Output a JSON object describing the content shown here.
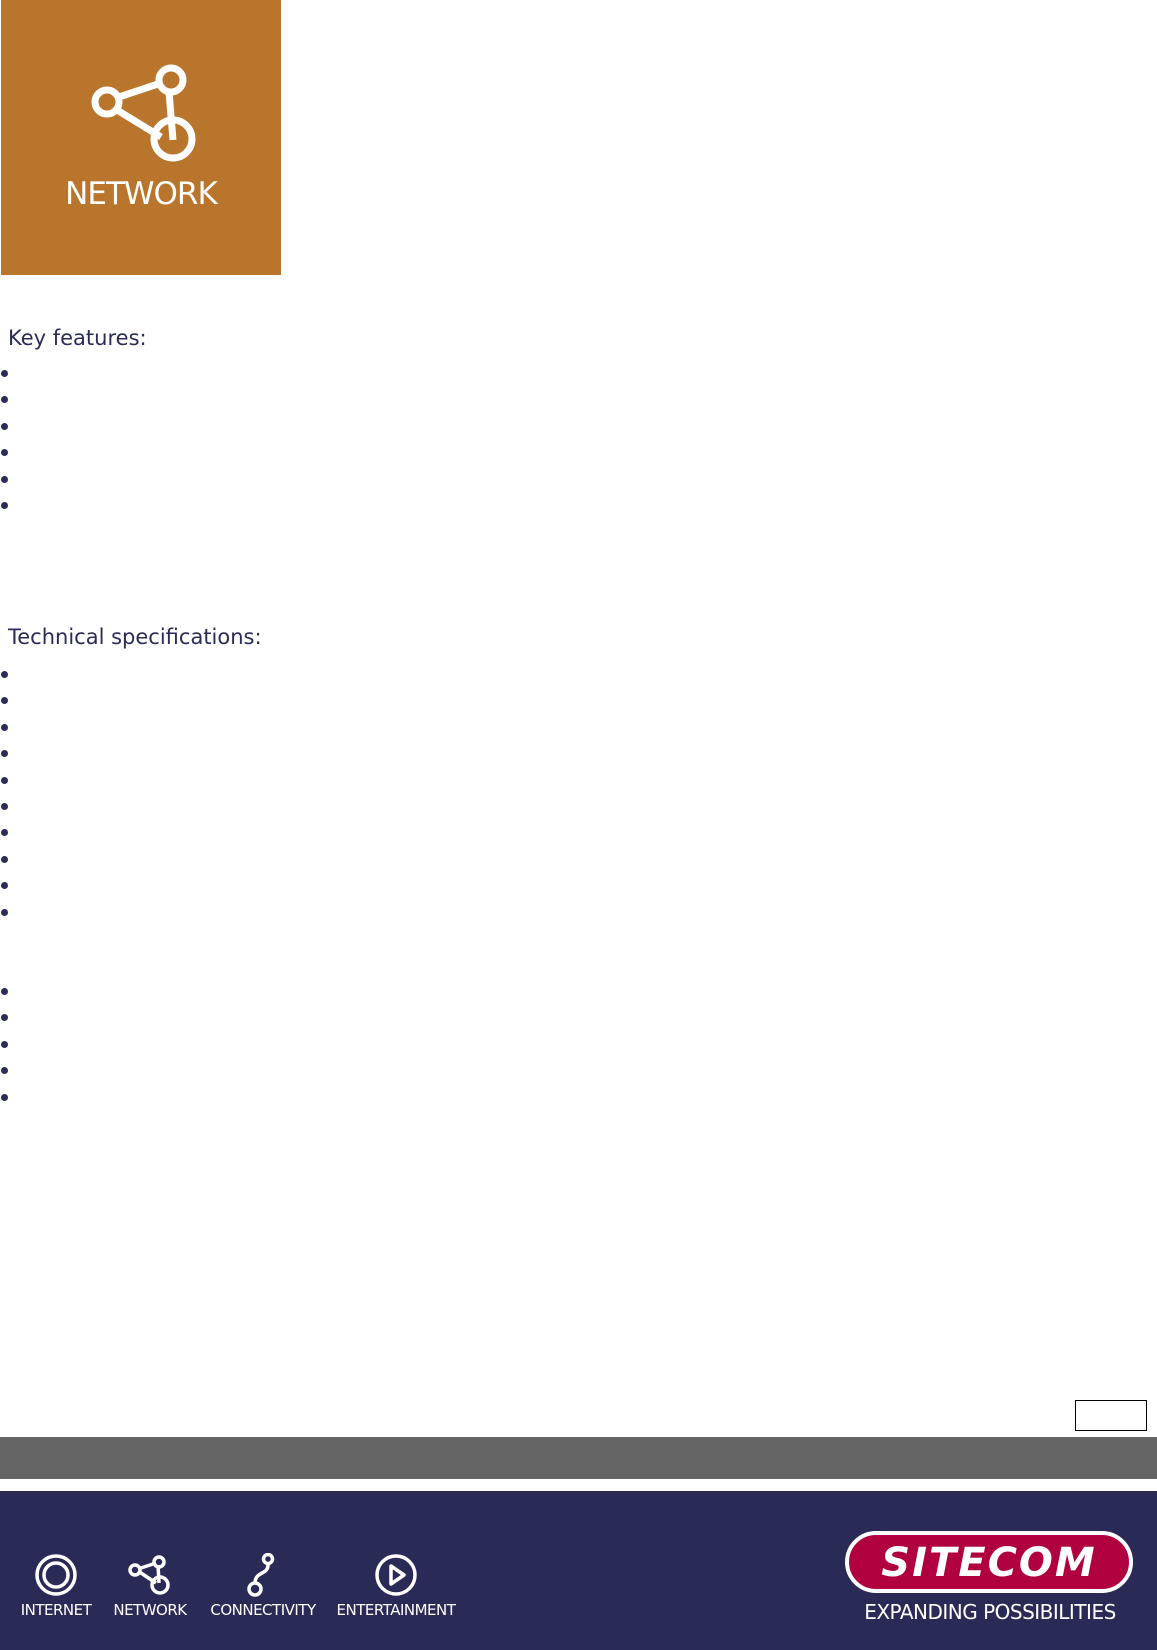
{
  "hero": {
    "label": "NETWORK",
    "icon": "network-icon",
    "color": "#b8752b"
  },
  "key_features": {
    "heading": "Key features:",
    "bullet_count": 6
  },
  "technical_specifications": {
    "heading": "Technical specifications:",
    "bullet_groups": [
      10,
      5
    ]
  },
  "footer": {
    "background": "#2a2a56",
    "categories": [
      {
        "label": "INTERNET",
        "icon": "internet-icon"
      },
      {
        "label": "NETWORK",
        "icon": "network-icon"
      },
      {
        "label": "CONNECTIVITY",
        "icon": "connectivity-icon"
      },
      {
        "label": "ENTERTAINMENT",
        "icon": "play-icon"
      }
    ],
    "logo": {
      "text": "SITECOM",
      "color": "#b0003f"
    },
    "tagline": "EXPANDING POSSIBILITIES"
  }
}
